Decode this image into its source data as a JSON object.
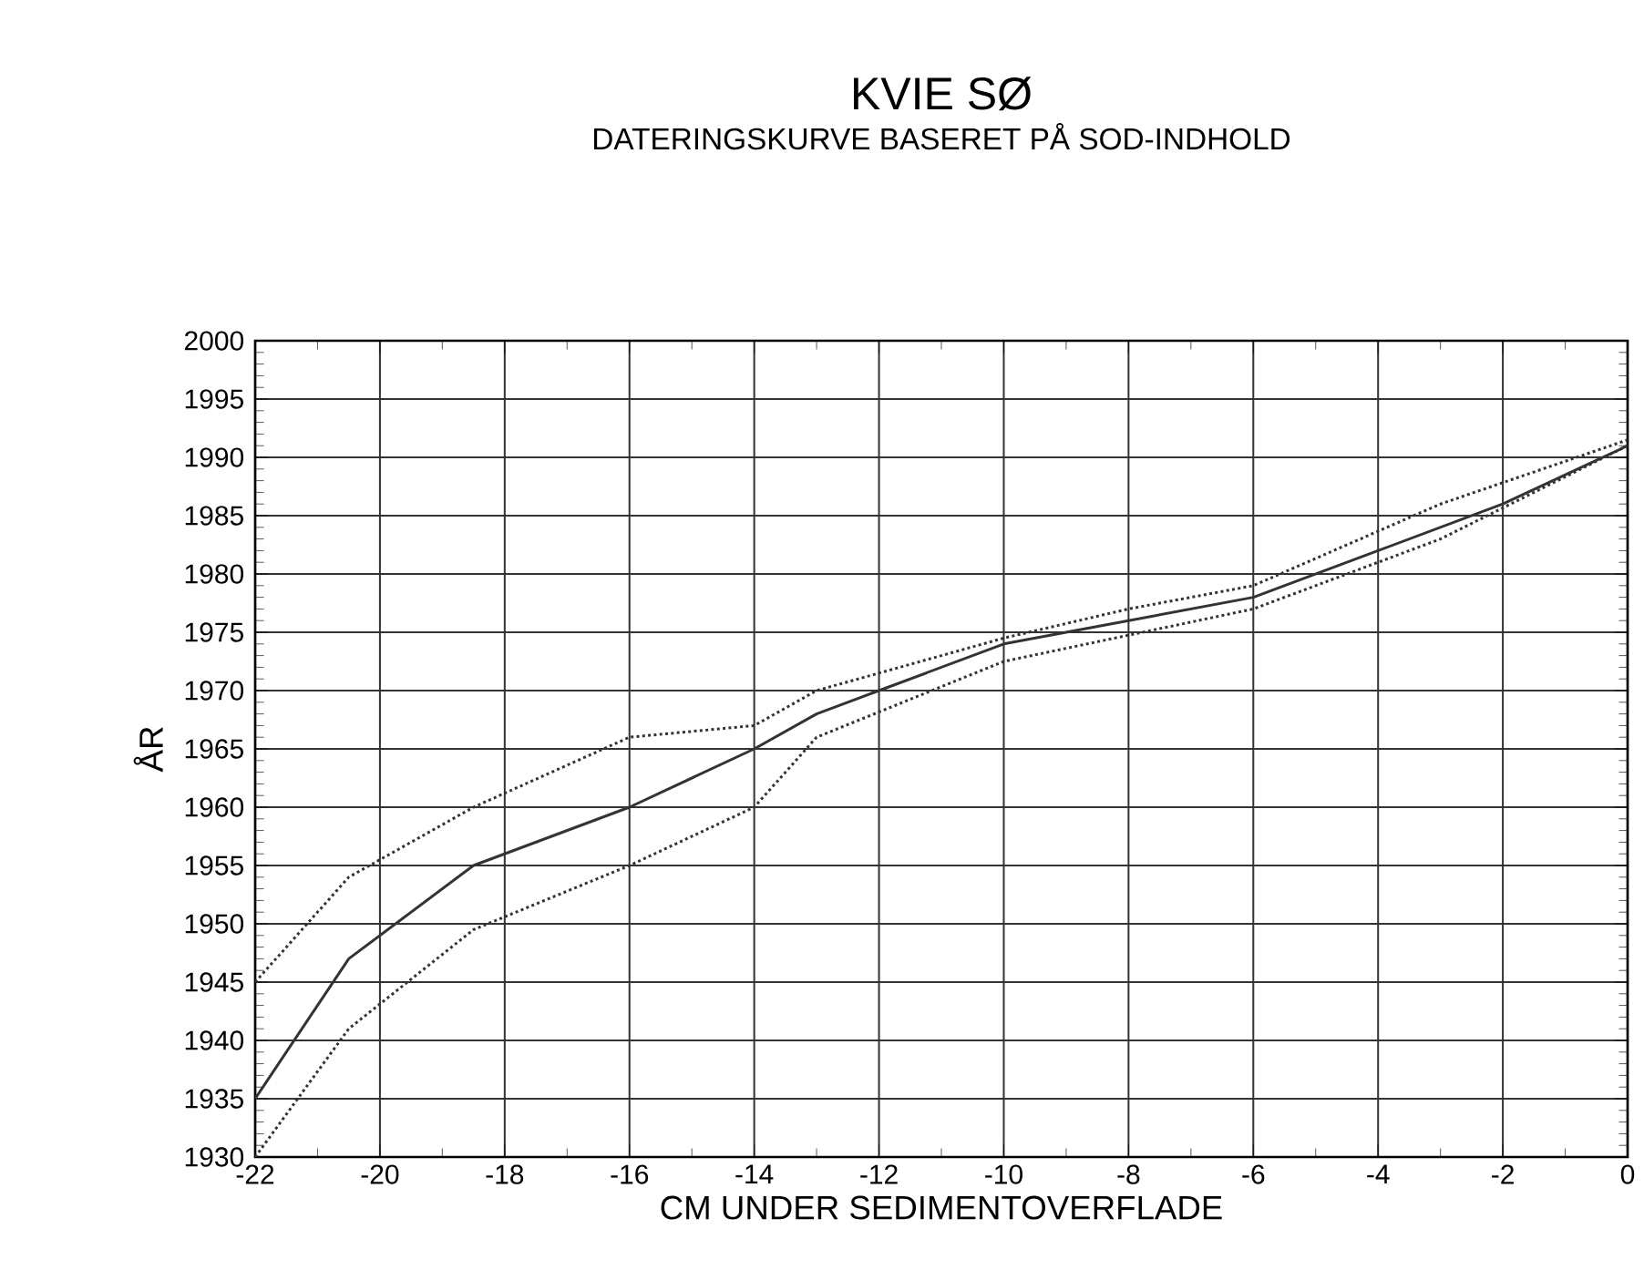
{
  "chart_data": {
    "type": "line",
    "title": "KVIE SØ",
    "subtitle": "DATERINGSKURVE BASERET PÅ SOD-INDHOLD",
    "xlabel": "CM UNDER SEDIMENTOVERFLADE",
    "ylabel": "ÅR",
    "xlim": [
      -22,
      0
    ],
    "xticks": [
      -22,
      -20,
      -18,
      -16,
      -14,
      -12,
      -10,
      -8,
      -6,
      -4,
      -2,
      0
    ],
    "ylim": [
      1930,
      2000
    ],
    "yticks": [
      1930,
      1935,
      1940,
      1945,
      1950,
      1955,
      1960,
      1965,
      1970,
      1975,
      1980,
      1985,
      1990,
      1995,
      2000
    ],
    "grid": true,
    "series": [
      {
        "color": "#333333",
        "line_style": "solid",
        "x": [
          -22,
          -20.5,
          -18.5,
          -16,
          -14,
          -13,
          -12,
          -10,
          -8,
          -6,
          -4,
          -2,
          0
        ],
        "values": [
          1935,
          1947,
          1955,
          1960,
          1965,
          1968,
          1970,
          1974,
          1976,
          1978,
          1982,
          1986,
          1991
        ]
      },
      {
        "color": "#333333",
        "line_style": "dotted",
        "x": [
          -22,
          -20.5,
          -18.5,
          -16,
          -14,
          -13,
          -10,
          -8,
          -6,
          -3,
          0
        ],
        "values": [
          1945,
          1954,
          1960,
          1966,
          1967,
          1970,
          1974.5,
          1977,
          1979,
          1986,
          1991.5
        ]
      },
      {
        "color": "#333333",
        "line_style": "dotted",
        "x": [
          -22,
          -20.5,
          -18.5,
          -16,
          -14,
          -13,
          -10,
          -6,
          -3,
          0
        ],
        "values": [
          1930,
          1941,
          1949.5,
          1955,
          1960,
          1966,
          1972.5,
          1977,
          1983,
          1991
        ]
      }
    ]
  }
}
